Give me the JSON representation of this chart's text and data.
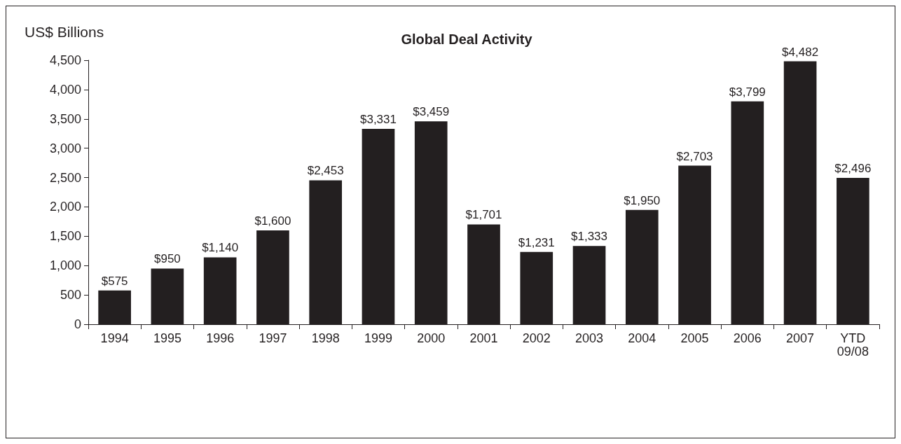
{
  "chart_data": {
    "type": "bar",
    "title": "Global Deal Activity",
    "ylabel": "US$ Billions",
    "categories": [
      "1994",
      "1995",
      "1996",
      "1997",
      "1998",
      "1999",
      "2000",
      "2001",
      "2002",
      "2003",
      "2004",
      "2005",
      "2006",
      "2007",
      "YTD\n09/08"
    ],
    "values": [
      575,
      950,
      1140,
      1600,
      2453,
      3331,
      3459,
      1701,
      1231,
      1333,
      1950,
      2703,
      3799,
      4482,
      2496
    ],
    "value_labels": [
      "$575",
      "$950",
      "$1,140",
      "$1,600",
      "$2,453",
      "$3,331",
      "$3,459",
      "$1,701",
      "$1,231",
      "$1,333",
      "$1,950",
      "$2,703",
      "$3,799",
      "$4,482",
      "$2,496"
    ],
    "color": "#231f20",
    "ylim": [
      0,
      4500
    ],
    "yticks": [
      0,
      500,
      {
        "value": 1000,
        "label": "1,000"
      },
      {
        "value": 1500,
        "label": "1,500"
      },
      {
        "value": 2000,
        "label": "2,000"
      },
      {
        "value": 2500,
        "label": "2,500"
      },
      {
        "value": 3000,
        "label": "3,000"
      },
      {
        "value": 3500,
        "label": "3,500"
      },
      {
        "value": 4000,
        "label": "4,000"
      },
      {
        "value": 4500,
        "label": "4,500"
      }
    ],
    "grid": false
  }
}
